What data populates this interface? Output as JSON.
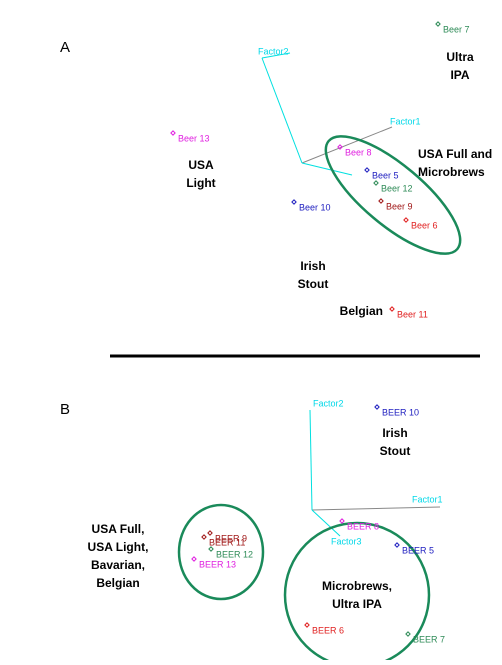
{
  "panels": [
    {
      "label": "A",
      "axes": [
        "Factor2",
        "Factor1"
      ],
      "points": [
        {
          "label": "Beer 7",
          "color": "#2e8b57"
        },
        {
          "label": "Beer 13",
          "color": "#e020e0"
        },
        {
          "label": "Beer 8",
          "color": "#e020e0"
        },
        {
          "label": "Beer 5",
          "color": "#2020c0"
        },
        {
          "label": "Beer 12",
          "color": "#2e8b57"
        },
        {
          "label": "Beer 9",
          "color": "#a01818"
        },
        {
          "label": "Beer 10",
          "color": "#2020c0"
        },
        {
          "label": "Beer 6",
          "color": "#e02020"
        },
        {
          "label": "Beer 11",
          "color": "#e02020"
        }
      ],
      "groups": [
        {
          "lines": [
            "Ultra",
            "IPA"
          ]
        },
        {
          "lines": [
            "USA",
            "Light"
          ]
        },
        {
          "lines": [
            "USA Full and",
            "Microbrews"
          ]
        },
        {
          "lines": [
            "Irish",
            "Stout"
          ]
        },
        {
          "lines": [
            "Belgian"
          ]
        }
      ]
    },
    {
      "label": "B",
      "axes": [
        "Factor2",
        "Factor1",
        "Factor3"
      ],
      "points": [
        {
          "label": "BEER 10",
          "color": "#2020c0"
        },
        {
          "label": "BEER 8",
          "color": "#e020e0"
        },
        {
          "label": "BEER 5",
          "color": "#2020c0"
        },
        {
          "label": "BEER 11",
          "color": "#a01818"
        },
        {
          "label": "BEER 9",
          "color": "#a01818"
        },
        {
          "label": "BEER 12",
          "color": "#2e8b57"
        },
        {
          "label": "BEER 13",
          "color": "#e020e0"
        },
        {
          "label": "BEER 6",
          "color": "#e02020"
        },
        {
          "label": "BEER 7",
          "color": "#2e8b57"
        }
      ],
      "groups": [
        {
          "lines": [
            "Irish",
            "Stout"
          ]
        },
        {
          "lines": [
            "USA Full,",
            "USA Light,",
            "Bavarian,",
            "Belgian"
          ]
        },
        {
          "lines": [
            "Microbrews,",
            "Ultra IPA"
          ]
        }
      ]
    }
  ]
}
